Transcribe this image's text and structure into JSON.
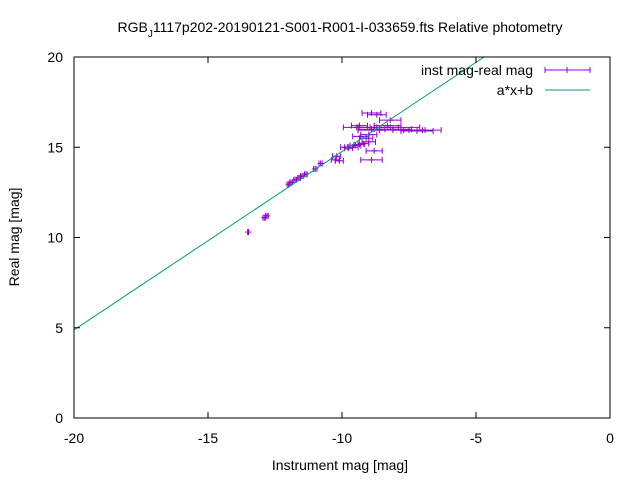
{
  "chart_data": {
    "type": "scatter",
    "title_prefix": "RGB",
    "title_subscript": "J",
    "title_suffix": "1117p202-20190121-S001-R001-I-033659.fts Relative photometry",
    "xlabel": "Instrument mag [mag]",
    "ylabel": "Real mag [mag]",
    "xlim": [
      -20,
      0
    ],
    "ylim": [
      0,
      20
    ],
    "xticks": [
      "-20",
      "-15",
      "-10",
      "-5",
      "0"
    ],
    "yticks": [
      "0",
      "5",
      "10",
      "15",
      "20"
    ],
    "grid": false,
    "legend_position": "top-right",
    "series": [
      {
        "name": "inst mag-real mag",
        "kind": "points-xerror",
        "color": "#9400d3",
        "points": [
          {
            "x": -13.5,
            "y": 10.3,
            "xerr": 0.02
          },
          {
            "x": -12.9,
            "y": 11.1,
            "xerr": 0.05
          },
          {
            "x": -12.8,
            "y": 11.2,
            "xerr": 0.05
          },
          {
            "x": -12.0,
            "y": 12.95,
            "xerr": 0.05
          },
          {
            "x": -11.9,
            "y": 13.05,
            "xerr": 0.05
          },
          {
            "x": -11.75,
            "y": 13.2,
            "xerr": 0.05
          },
          {
            "x": -11.6,
            "y": 13.3,
            "xerr": 0.05
          },
          {
            "x": -11.5,
            "y": 13.4,
            "xerr": 0.05
          },
          {
            "x": -11.35,
            "y": 13.5,
            "xerr": 0.05
          },
          {
            "x": -11.0,
            "y": 13.8,
            "xerr": 0.06
          },
          {
            "x": -10.8,
            "y": 14.1,
            "xerr": 0.06
          },
          {
            "x": -10.25,
            "y": 14.3,
            "xerr": 0.15
          },
          {
            "x": -10.2,
            "y": 14.5,
            "xerr": 0.15
          },
          {
            "x": -10.1,
            "y": 14.25,
            "xerr": 0.15
          },
          {
            "x": -9.9,
            "y": 15.0,
            "xerr": 0.15
          },
          {
            "x": -9.75,
            "y": 14.95,
            "xerr": 0.15
          },
          {
            "x": -9.6,
            "y": 15.0,
            "xerr": 0.2
          },
          {
            "x": -9.5,
            "y": 15.1,
            "xerr": 0.2
          },
          {
            "x": -9.35,
            "y": 15.15,
            "xerr": 0.2
          },
          {
            "x": -9.2,
            "y": 15.2,
            "xerr": 0.2
          },
          {
            "x": -9.1,
            "y": 15.5,
            "xerr": 0.25
          },
          {
            "x": -9.0,
            "y": 15.7,
            "xerr": 0.3
          },
          {
            "x": -9.0,
            "y": 15.3,
            "xerr": 0.25
          },
          {
            "x": -9.3,
            "y": 15.6,
            "xerr": 0.3
          },
          {
            "x": -9.45,
            "y": 16.1,
            "xerr": 0.5
          },
          {
            "x": -9.35,
            "y": 16.2,
            "xerr": 0.3
          },
          {
            "x": -8.9,
            "y": 16.0,
            "xerr": 0.5
          },
          {
            "x": -8.8,
            "y": 16.1,
            "xerr": 0.6
          },
          {
            "x": -8.6,
            "y": 15.95,
            "xerr": 0.8
          },
          {
            "x": -8.3,
            "y": 16.2,
            "xerr": 0.5
          },
          {
            "x": -8.2,
            "y": 16.5,
            "xerr": 0.4
          },
          {
            "x": -8.1,
            "y": 16.0,
            "xerr": 0.7
          },
          {
            "x": -7.9,
            "y": 16.1,
            "xerr": 0.8
          },
          {
            "x": -7.5,
            "y": 15.95,
            "xerr": 0.6
          },
          {
            "x": -7.2,
            "y": 15.9,
            "xerr": 0.6
          },
          {
            "x": -7.0,
            "y": 15.95,
            "xerr": 0.7
          },
          {
            "x": -8.9,
            "y": 16.9,
            "xerr": 0.35
          },
          {
            "x": -8.7,
            "y": 16.8,
            "xerr": 0.35
          },
          {
            "x": -8.8,
            "y": 14.8,
            "xerr": 0.3
          },
          {
            "x": -8.9,
            "y": 14.3,
            "xerr": 0.4
          }
        ]
      },
      {
        "name": "a*x+b",
        "kind": "line",
        "color": "#009e73",
        "x": [
          -20,
          -4.7
        ],
        "y": [
          4.88,
          20
        ]
      }
    ]
  }
}
